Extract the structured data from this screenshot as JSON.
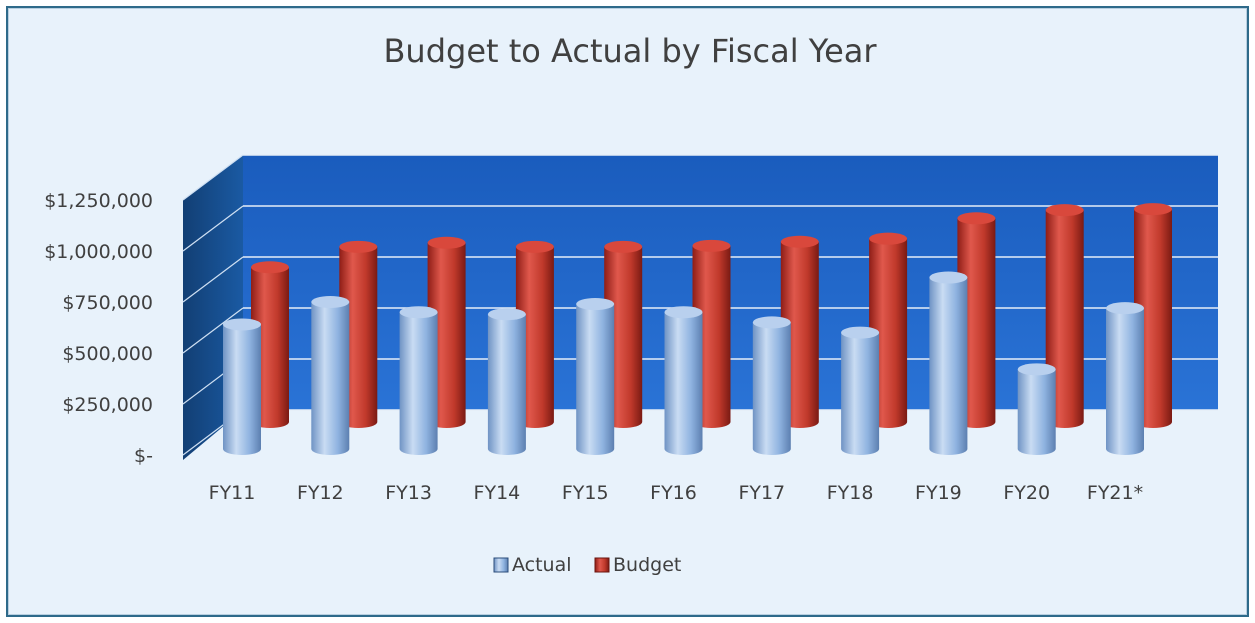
{
  "chart_data": {
    "type": "bar",
    "title": "Budget to Actual by Fiscal Year",
    "xlabel": "",
    "ylabel": "",
    "categories": [
      "FY11",
      "FY12",
      "FY13",
      "FY14",
      "FY15",
      "FY16",
      "FY17",
      "FY18",
      "FY19",
      "FY20",
      "FY21*"
    ],
    "series": [
      {
        "name": "Actual",
        "values": [
          640000,
          750000,
          700000,
          690000,
          740000,
          700000,
          650000,
          600000,
          870000,
          420000,
          720000
        ]
      },
      {
        "name": "Budget",
        "values": [
          690000,
          790000,
          810000,
          790000,
          790000,
          795000,
          815000,
          830000,
          930000,
          970000,
          975000
        ]
      }
    ],
    "ylim": [
      0,
      1250000
    ],
    "yticks": [
      0,
      250000,
      500000,
      750000,
      1000000,
      1250000
    ],
    "ytick_labels": [
      "$-",
      "$250,000",
      "$500,000",
      "$750,000",
      "$1,000,000",
      "$1,250,000"
    ],
    "legend_position": "bottom",
    "grid": true,
    "colors": {
      "actual": "#8fb3e0",
      "budget": "#c0392b",
      "back_wall": "#1f63c6",
      "side_wall": "#17508f",
      "chart_background": "#e8f2fb",
      "border": "#2e6a8a"
    }
  }
}
